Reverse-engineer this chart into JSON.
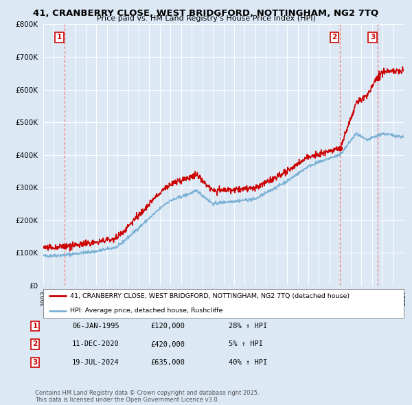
{
  "title1": "41, CRANBERRY CLOSE, WEST BRIDGFORD, NOTTINGHAM, NG2 7TQ",
  "title2": "Price paid vs. HM Land Registry's House Price Index (HPI)",
  "legend_line1": "41, CRANBERRY CLOSE, WEST BRIDGFORD, NOTTINGHAM, NG2 7TQ (detached house)",
  "legend_line2": "HPI: Average price, detached house, Rushcliffe",
  "sale1_date": "06-JAN-1995",
  "sale1_price": 120000,
  "sale1_hpi": "28% ↑ HPI",
  "sale2_date": "11-DEC-2020",
  "sale2_price": 420000,
  "sale2_hpi": "5% ↑ HPI",
  "sale3_date": "19-JUL-2024",
  "sale3_price": 635000,
  "sale3_hpi": "40% ↑ HPI",
  "sale1_year": 1995.02,
  "sale2_year": 2020.95,
  "sale3_year": 2024.55,
  "footnote": "Contains HM Land Registry data © Crown copyright and database right 2025.\nThis data is licensed under the Open Government Licence v3.0.",
  "red_color": "#cc0000",
  "blue_color": "#7ab0d4",
  "bg_color": "#dce9f5",
  "plot_bg": "#dce9f5",
  "grid_color": "#ffffff",
  "dashed_color": "#e87070"
}
